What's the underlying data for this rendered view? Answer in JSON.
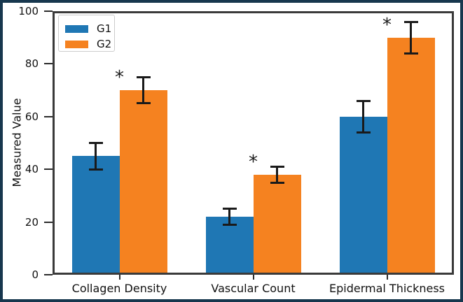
{
  "figure": {
    "frame_color": "#17374e",
    "background_color": "#ffffff",
    "spine_color": "#3a3a3a",
    "errorbar_color": "#1a1a1a",
    "text_color": "#111111"
  },
  "chart_data": {
    "type": "bar",
    "title": "",
    "xlabel": "",
    "ylabel": "Measured Value",
    "categories": [
      "Collagen Density",
      "Vascular Count",
      "Epidermal Thickness"
    ],
    "series": [
      {
        "name": "G1",
        "color": "#1f77b4",
        "values": [
          45,
          22,
          60
        ],
        "errors": [
          5,
          3,
          6
        ],
        "significance": [
          "",
          "",
          ""
        ]
      },
      {
        "name": "G2",
        "color": "#f58220",
        "values": [
          70,
          38,
          90
        ],
        "errors": [
          5,
          3,
          6
        ],
        "significance": [
          "*",
          "*",
          "*"
        ]
      }
    ],
    "ylim": [
      0,
      100
    ],
    "yticks": [
      0,
      20,
      40,
      60,
      80,
      100
    ],
    "grid": false,
    "error_bars": true,
    "legend_position": "upper left"
  }
}
